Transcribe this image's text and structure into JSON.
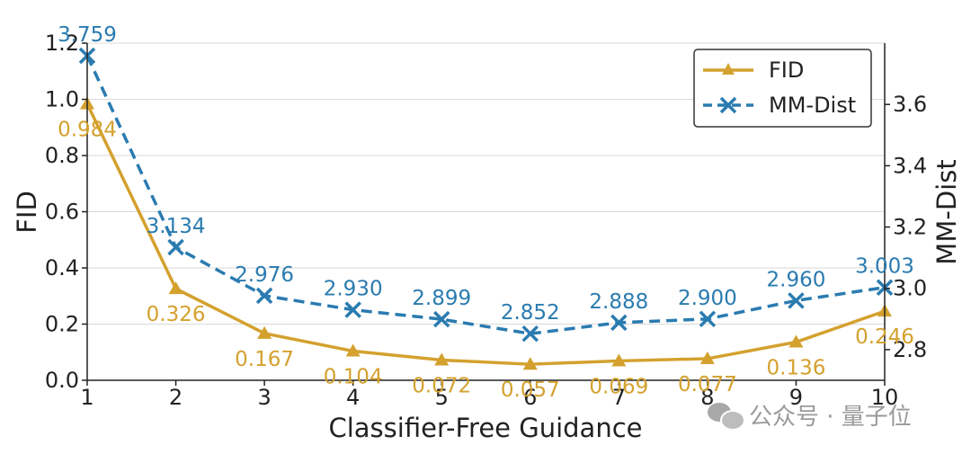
{
  "chart_data": {
    "type": "line",
    "x": [
      1,
      2,
      3,
      4,
      5,
      6,
      7,
      8,
      9,
      10
    ],
    "xlabel": "Classifier-Free Guidance",
    "ylabel": "FID",
    "y2label": "MM-Dist",
    "xlim": [
      1,
      10
    ],
    "ylim": [
      0.0,
      1.2
    ],
    "y2lim": [
      2.7,
      3.8
    ],
    "xticks": [
      "1",
      "2",
      "3",
      "4",
      "5",
      "6",
      "7",
      "8",
      "9",
      "10"
    ],
    "yticks": [
      "0.0",
      "0.2",
      "0.4",
      "0.6",
      "0.8",
      "1.0",
      "1.2"
    ],
    "y2ticks": [
      "2.8",
      "3.0",
      "3.2",
      "3.4",
      "3.6"
    ],
    "grid": true,
    "legend_position": "top-right",
    "series": [
      {
        "name": "FID",
        "axis": "left",
        "color": "#d4a12e",
        "marker": "triangle",
        "linestyle": "solid",
        "values": [
          0.984,
          0.326,
          0.167,
          0.104,
          0.072,
          0.057,
          0.069,
          0.077,
          0.136,
          0.246
        ],
        "labels": [
          "0.984",
          "0.326",
          "0.167",
          "0.104",
          "0.072",
          "0.057",
          "0.069",
          "0.077",
          "0.136",
          "0.246"
        ]
      },
      {
        "name": "MM-Dist",
        "axis": "right",
        "color": "#2a7bb0",
        "marker": "x",
        "linestyle": "dashed",
        "values": [
          3.759,
          3.134,
          2.976,
          2.93,
          2.899,
          2.852,
          2.888,
          2.9,
          2.96,
          3.003
        ],
        "labels": [
          "3.759",
          "3.134",
          "2.976",
          "2.930",
          "2.899",
          "2.852",
          "2.888",
          "2.900",
          "2.960",
          "3.003"
        ]
      }
    ]
  },
  "watermark": {
    "text": "公众号 · 量子位",
    "icon": "wechat-icon"
  }
}
